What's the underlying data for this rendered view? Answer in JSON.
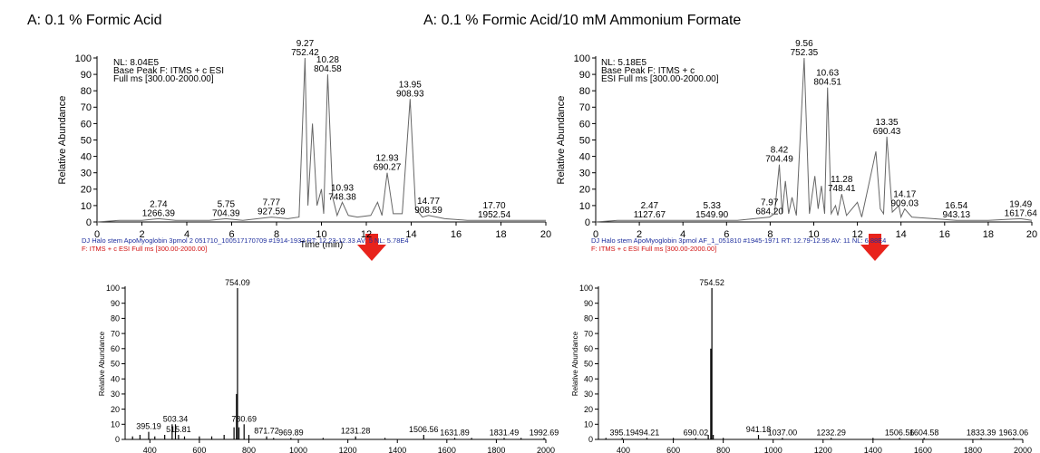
{
  "chart_data": [
    {
      "type": "line",
      "title": "A: 0.1 % Formic Acid",
      "annotations": [
        "NL: 8.04E5",
        "Base Peak F: ITMS + c ESI",
        "Full ms [300.00-2000.00]"
      ],
      "xlabel": "Time (min)",
      "ylabel": "Relative Abundance",
      "color": "#666666",
      "xlim": [
        0,
        20
      ],
      "xticks": [
        0,
        2,
        4,
        6,
        8,
        10,
        12,
        14,
        16,
        18,
        20
      ],
      "ylim": [
        0,
        100
      ],
      "yticks": [
        0,
        10,
        20,
        30,
        40,
        50,
        60,
        70,
        80,
        90,
        100
      ],
      "x": [
        0,
        1,
        2,
        2.74,
        3.5,
        5,
        5.75,
        6.5,
        7.77,
        8.5,
        9,
        9.27,
        9.4,
        9.6,
        9.8,
        10,
        10.1,
        10.28,
        10.5,
        10.7,
        10.93,
        11.2,
        11.6,
        12.2,
        12.5,
        12.7,
        12.93,
        13.2,
        13.6,
        13.95,
        14.2,
        14.5,
        14.77,
        15.5,
        16.5,
        17.7,
        18.5,
        20
      ],
      "values": [
        0,
        1,
        1,
        2,
        1,
        1,
        2,
        1,
        3,
        2,
        3,
        100,
        10,
        60,
        10,
        20,
        5,
        90,
        15,
        4,
        12,
        4,
        3,
        4,
        12,
        4,
        30,
        5,
        5,
        75,
        8,
        3,
        4,
        2,
        1,
        1,
        1,
        1
      ],
      "peaks": [
        {
          "time": 2.74,
          "mz": 1266.39
        },
        {
          "time": 5.75,
          "mz": 704.39
        },
        {
          "time": 7.77,
          "mz": 927.59
        },
        {
          "time": 9.27,
          "mz": 752.42
        },
        {
          "time": 10.28,
          "mz": 804.58
        },
        {
          "time": 10.93,
          "mz": 748.38
        },
        {
          "time": 12.93,
          "mz": 690.27
        },
        {
          "time": 13.95,
          "mz": 908.93
        },
        {
          "time": 14.77,
          "mz": 908.59
        },
        {
          "time": {
            "value": 17.7,
            "label": "17.70"
          },
          "mz": 1952.54
        }
      ]
    },
    {
      "type": "line",
      "title": "A: 0.1 % Formic Acid/10 mM Ammonium Formate",
      "annotations": [
        "NL: 5.18E5",
        "Base Peak F: ITMS + c",
        "ESI Full ms [300.00-2000.00]"
      ],
      "ylabel": "Relative Abundance",
      "color": "#666666",
      "xlim": [
        0,
        20
      ],
      "xticks": [
        0,
        2,
        4,
        6,
        8,
        10,
        12,
        14,
        16,
        18,
        20
      ],
      "ylim": [
        0,
        100
      ],
      "yticks": [
        0,
        10,
        20,
        30,
        40,
        50,
        60,
        70,
        80,
        90,
        100
      ],
      "x": [
        0,
        1,
        2.47,
        3.5,
        5.33,
        6.5,
        7.97,
        8.2,
        8.42,
        8.55,
        8.7,
        8.85,
        9,
        9.2,
        9.56,
        9.8,
        10.05,
        10.2,
        10.35,
        10.5,
        10.63,
        10.8,
        11,
        11.1,
        11.28,
        11.5,
        12,
        12.2,
        12.85,
        13.05,
        13.2,
        13.35,
        13.6,
        13.9,
        14,
        14.17,
        14.5,
        15.5,
        16.54,
        18,
        19.49,
        20
      ],
      "values": [
        0,
        1,
        1,
        1,
        1,
        1,
        3,
        5,
        35,
        5,
        25,
        5,
        15,
        4,
        100,
        5,
        28,
        8,
        22,
        5,
        82,
        5,
        10,
        4,
        17,
        4,
        12,
        3,
        43,
        8,
        5,
        52,
        6,
        10,
        3,
        8,
        3,
        2,
        1,
        1,
        2,
        1
      ],
      "peaks": [
        {
          "time": 2.47,
          "mz": 1127.67
        },
        {
          "time": 5.33,
          "mz": {
            "value": 1549.9,
            "label": "1549.90"
          }
        },
        {
          "time": 7.97,
          "mz": {
            "value": 684.2,
            "label": "684.20"
          }
        },
        {
          "time": 8.42,
          "mz": 704.49
        },
        {
          "time": 9.56,
          "mz": 752.35
        },
        {
          "time": 10.63,
          "mz": 804.51
        },
        {
          "time": 11.28,
          "mz": 748.41
        },
        {
          "time": 13.35,
          "mz": 690.43
        },
        {
          "time": 14.17,
          "mz": 909.03
        },
        {
          "time": 16.54,
          "mz": 943.13
        },
        {
          "time": 19.49,
          "mz": 1617.64
        }
      ]
    },
    {
      "type": "spectrum",
      "header": [
        "DJ  Halo  stem  ApoMyoglobin  3pmol  2  051710_100517170709 #1914-1933   RT: 12.23-12.33   AV: 5   NL: 5.78E4",
        "F: ITMS + c ESI Full ms [300.00-2000.00]"
      ],
      "ylabel": "Relative Abundance",
      "color": "#000000",
      "xlim": [
        300,
        2000
      ],
      "xticks": [
        400,
        600,
        800,
        1000,
        1200,
        1400,
        1600,
        1800,
        2000
      ],
      "ylim": [
        0,
        100
      ],
      "yticks": [
        0,
        10,
        20,
        30,
        40,
        50,
        60,
        70,
        80,
        90,
        100
      ],
      "x": [
        330,
        360,
        395.19,
        420,
        460,
        490,
        503.34,
        515.81,
        540,
        600,
        650,
        700,
        740,
        750,
        754.09,
        760,
        780.69,
        800,
        871.72,
        900,
        969.89,
        1100,
        1231.28,
        1350,
        1506.56,
        1631.89,
        1700,
        1831.49,
        1900,
        1992.69
      ],
      "values": [
        2,
        3,
        5,
        2,
        3,
        10,
        10,
        3,
        2,
        2,
        2,
        3,
        8,
        30,
        100,
        8,
        10,
        3,
        2,
        1,
        1,
        1,
        2,
        1,
        3,
        1,
        1,
        1,
        1,
        1
      ],
      "peaks": [
        395.19,
        503.34,
        515.81,
        754.09,
        780.69,
        871.72,
        969.89,
        1231.28,
        1506.56,
        1631.89,
        1831.49,
        1992.69
      ]
    },
    {
      "type": "spectrum",
      "header": [
        "DJ  Halo  stem  ApoMyoglobin  3pmol  AF_1_051810 #1945-1971   RT: 12.79-12.95   AV: 11   NL: 6.88E4",
        "F: ITMS + c ESI Full ms [300.00-2000.00]"
      ],
      "ylabel": "Relative Abundance",
      "color": "#000000",
      "xlim": [
        300,
        2000
      ],
      "xticks": [
        400,
        600,
        800,
        1000,
        1200,
        1400,
        1600,
        1800,
        2000
      ],
      "ylim": [
        0,
        100
      ],
      "yticks": [
        0,
        10,
        20,
        30,
        40,
        50,
        60,
        70,
        80,
        90,
        100
      ],
      "x": [
        330,
        395.19,
        494.21,
        600,
        690.02,
        740,
        750,
        754.52,
        760,
        800,
        941.18,
        1037,
        1232.29,
        1400,
        1506.56,
        1604.58,
        1833.39,
        1963.06
      ],
      "values": [
        1,
        1,
        1,
        1,
        1,
        3,
        60,
        100,
        3,
        1,
        3,
        1,
        1,
        1,
        1,
        1,
        1,
        1
      ],
      "peaks": [
        395.19,
        494.21,
        690.02,
        754.52,
        941.18,
        {
          "value": 1037,
          "label": "1037.00"
        },
        1232.29,
        1506.56,
        1604.58,
        1833.39,
        1963.06
      ]
    }
  ]
}
